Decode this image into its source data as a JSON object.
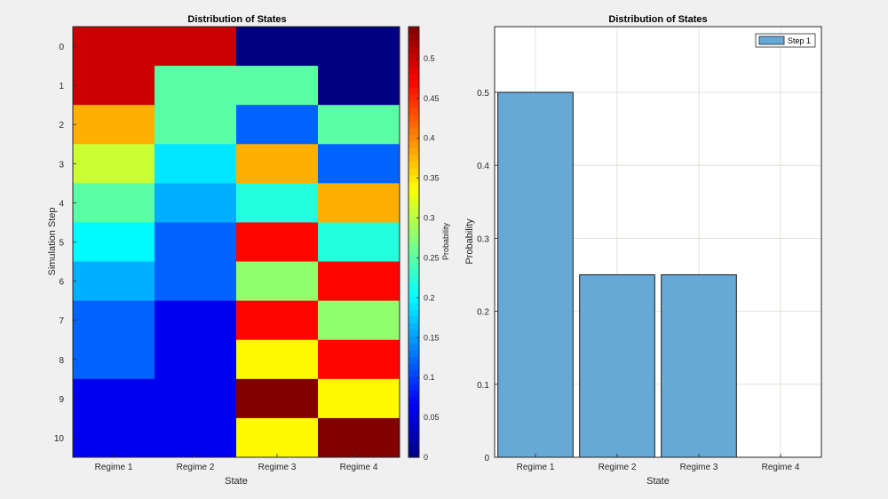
{
  "chart_data": [
    {
      "type": "heatmap",
      "title": "Distribution of States",
      "xlabel": "State",
      "ylabel": "Simulation Step",
      "x_categories": [
        "Regime 1",
        "Regime 2",
        "Regime 3",
        "Regime 4"
      ],
      "y_categories": [
        "0",
        "1",
        "2",
        "3",
        "4",
        "5",
        "6",
        "7",
        "8",
        "9",
        "10"
      ],
      "values": [
        [
          0.5,
          0.5,
          0.0,
          0.0
        ],
        [
          0.5,
          0.25,
          0.25,
          0.0
        ],
        [
          0.38,
          0.25,
          0.12,
          0.25
        ],
        [
          0.31,
          0.19,
          0.38,
          0.12
        ],
        [
          0.25,
          0.16,
          0.22,
          0.38
        ],
        [
          0.2,
          0.12,
          0.47,
          0.22
        ],
        [
          0.16,
          0.12,
          0.28,
          0.47
        ],
        [
          0.12,
          0.06,
          0.47,
          0.28
        ],
        [
          0.12,
          0.06,
          0.34,
          0.47
        ],
        [
          0.06,
          0.06,
          0.55,
          0.34
        ],
        [
          0.06,
          0.06,
          0.34,
          0.55
        ]
      ],
      "colormap": "jet",
      "clim": [
        0,
        0.54
      ],
      "colorbar": {
        "label": "Probability",
        "ticks": [
          "0",
          "0.05",
          "0.1",
          "0.15",
          "0.2",
          "0.25",
          "0.3",
          "0.35",
          "0.4",
          "0.45",
          "0.5"
        ]
      }
    },
    {
      "type": "bar",
      "title": "Distribution of States",
      "xlabel": "State",
      "ylabel": "Probability",
      "categories": [
        "Regime 1",
        "Regime 2",
        "Regime 3",
        "Regime 4"
      ],
      "series": [
        {
          "name": "Step 1",
          "values": [
            0.5,
            0.25,
            0.25,
            0
          ],
          "color": "#66a8d6"
        }
      ],
      "ylim": [
        0,
        0.59
      ],
      "yticks": [
        "0",
        "0.1",
        "0.2",
        "0.3",
        "0.4",
        "0.5"
      ],
      "grid": true,
      "legend_position": "top-right"
    }
  ]
}
